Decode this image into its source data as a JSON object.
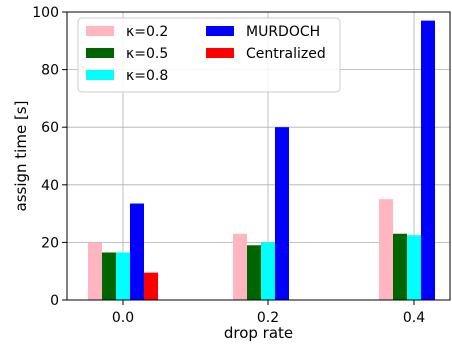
{
  "chart_data": {
    "type": "bar",
    "xlabel": "drop rate",
    "ylabel": "assign time [s]",
    "categories": [
      "0.0",
      "0.2",
      "0.4"
    ],
    "ylim": [
      0,
      100
    ],
    "yticks": [
      0,
      20,
      40,
      60,
      80,
      100
    ],
    "grid": true,
    "legend_placement": "top-left",
    "legend_columns": 2,
    "series": [
      {
        "name": "κ=0.2",
        "color": "#ffb6c1",
        "values": [
          20,
          23,
          35
        ]
      },
      {
        "name": "κ=0.5",
        "color": "#006400",
        "values": [
          16.5,
          19,
          23
        ]
      },
      {
        "name": "κ=0.8",
        "color": "#00ffff",
        "values": [
          16.5,
          20,
          22.5
        ]
      },
      {
        "name": "MURDOCH",
        "color": "#0000ff",
        "values": [
          33.5,
          60,
          97
        ]
      },
      {
        "name": "Centralized",
        "color": "#ff0000",
        "values": [
          9.5,
          null,
          null
        ]
      }
    ]
  }
}
